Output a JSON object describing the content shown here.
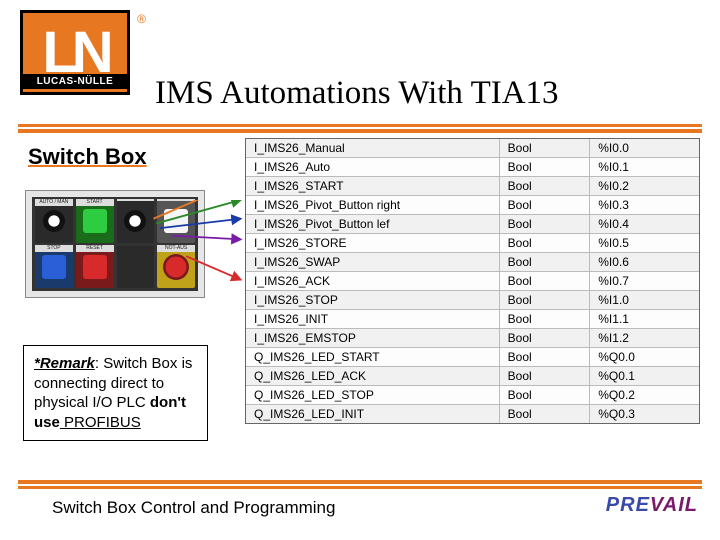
{
  "header": {
    "logo_initials": "LN",
    "logo_text": "LUCAS-NÜLLE",
    "logo_tm": "®",
    "title": "IMS Automations With TIA13",
    "accent_color": "#e87722"
  },
  "section_title": "Switch Box",
  "switch_labels": {
    "r1c1": "AUTO / MAN",
    "r1c2": "START",
    "r1c3": "",
    "r1c4": "",
    "r2c1": "STOP",
    "r2c2": "RESET",
    "r2c3": "",
    "r2c4": "NOT-AUS"
  },
  "remark": {
    "label": "*Remark",
    "text_1": ": Switch Box is connecting direct to physical I/O PLC ",
    "bold_1": "don't use",
    "text_2": " PROFIBUS"
  },
  "io_table": [
    {
      "name": "I_IMS26_Manual",
      "type": "Bool",
      "addr": "%I0.0"
    },
    {
      "name": "I_IMS26_Auto",
      "type": "Bool",
      "addr": "%I0.1"
    },
    {
      "name": "I_IMS26_START",
      "type": "Bool",
      "addr": "%I0.2"
    },
    {
      "name": "I_IMS26_Pivot_Button right",
      "type": "Bool",
      "addr": "%I0.3"
    },
    {
      "name": "I_IMS26_Pivot_Button lef",
      "type": "Bool",
      "addr": "%I0.4"
    },
    {
      "name": "I_IMS26_STORE",
      "type": "Bool",
      "addr": "%I0.5"
    },
    {
      "name": "I_IMS26_SWAP",
      "type": "Bool",
      "addr": "%I0.6"
    },
    {
      "name": "I_IMS26_ACK",
      "type": "Bool",
      "addr": "%I0.7"
    },
    {
      "name": "I_IMS26_STOP",
      "type": "Bool",
      "addr": "%I1.0"
    },
    {
      "name": "I_IMS26_INIT",
      "type": "Bool",
      "addr": "%I1.1"
    },
    {
      "name": "I_IMS26_EMSTOP",
      "type": "Bool",
      "addr": "%I1.2"
    },
    {
      "name": "Q_IMS26_LED_START",
      "type": "Bool",
      "addr": "%Q0.0"
    },
    {
      "name": "Q_IMS26_LED_ACK",
      "type": "Bool",
      "addr": "%Q0.1"
    },
    {
      "name": "Q_IMS26_LED_STOP",
      "type": "Bool",
      "addr": "%Q0.2"
    },
    {
      "name": "Q_IMS26_LED_INIT",
      "type": "Bool",
      "addr": "%Q0.3"
    }
  ],
  "footer": {
    "text": "Switch Box Control and Programming",
    "logo_1": "PRE",
    "logo_2": "VAIL"
  },
  "arrow_colors": {
    "a1": "#e87722",
    "a2": "#2a8a2a",
    "a3": "#1a3aa8",
    "a4": "#7a1aa8",
    "a5": "#d82a2a",
    "a6": "#a81a6b"
  }
}
